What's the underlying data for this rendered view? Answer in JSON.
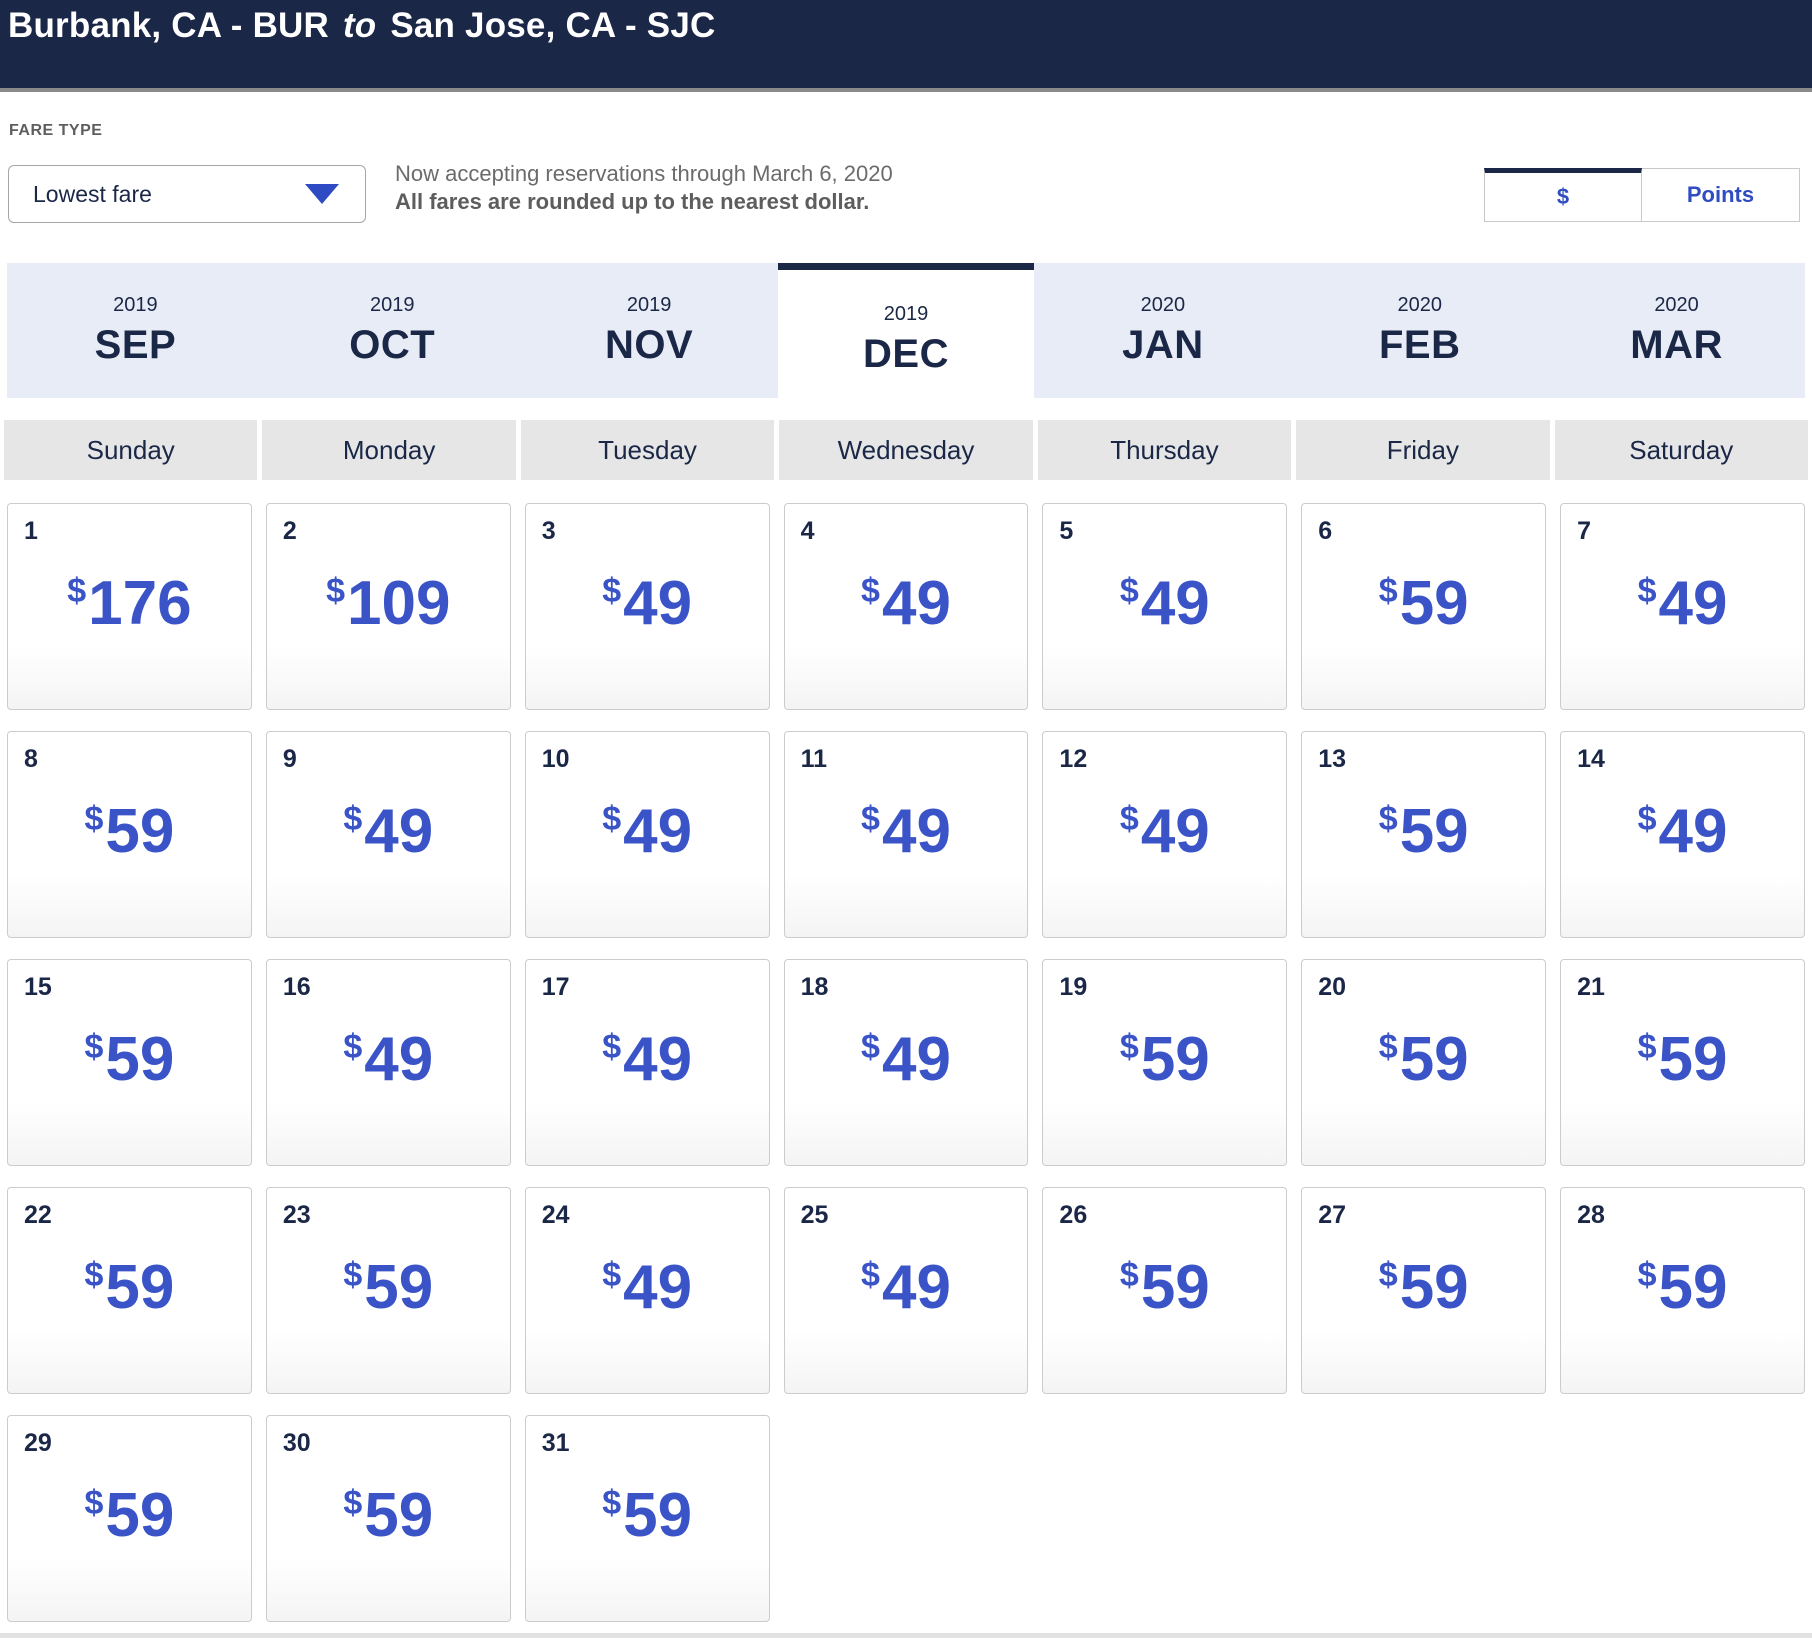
{
  "header": {
    "origin": "Burbank, CA - BUR",
    "to_word": "to",
    "destination": "San Jose, CA - SJC"
  },
  "fare_type": {
    "label": "FARE TYPE",
    "selected_option": "Lowest fare"
  },
  "notice": {
    "line1": "Now accepting reservations through March 6, 2020",
    "line2": "All fares are rounded up to the nearest dollar."
  },
  "currency_toggle": {
    "dollar_label": "$",
    "points_label": "Points",
    "selected": "dollar"
  },
  "month_tabs": [
    {
      "year": "2019",
      "label": "SEP"
    },
    {
      "year": "2019",
      "label": "OCT"
    },
    {
      "year": "2019",
      "label": "NOV"
    },
    {
      "year": "2019",
      "label": "DEC",
      "selected": true
    },
    {
      "year": "2020",
      "label": "JAN"
    },
    {
      "year": "2020",
      "label": "FEB"
    },
    {
      "year": "2020",
      "label": "MAR"
    }
  ],
  "weekdays": [
    "Sunday",
    "Monday",
    "Tuesday",
    "Wednesday",
    "Thursday",
    "Friday",
    "Saturday"
  ],
  "calendar": {
    "month": "DEC",
    "year": "2019",
    "currency_symbol": "$",
    "days": [
      {
        "day": 1,
        "price": "176"
      },
      {
        "day": 2,
        "price": "109"
      },
      {
        "day": 3,
        "price": "49"
      },
      {
        "day": 4,
        "price": "49"
      },
      {
        "day": 5,
        "price": "49"
      },
      {
        "day": 6,
        "price": "59"
      },
      {
        "day": 7,
        "price": "49"
      },
      {
        "day": 8,
        "price": "59"
      },
      {
        "day": 9,
        "price": "49"
      },
      {
        "day": 10,
        "price": "49"
      },
      {
        "day": 11,
        "price": "49"
      },
      {
        "day": 12,
        "price": "49"
      },
      {
        "day": 13,
        "price": "59"
      },
      {
        "day": 14,
        "price": "49"
      },
      {
        "day": 15,
        "price": "59"
      },
      {
        "day": 16,
        "price": "49"
      },
      {
        "day": 17,
        "price": "49"
      },
      {
        "day": 18,
        "price": "49"
      },
      {
        "day": 19,
        "price": "59"
      },
      {
        "day": 20,
        "price": "59"
      },
      {
        "day": 21,
        "price": "59"
      },
      {
        "day": 22,
        "price": "59"
      },
      {
        "day": 23,
        "price": "59"
      },
      {
        "day": 24,
        "price": "49"
      },
      {
        "day": 25,
        "price": "49"
      },
      {
        "day": 26,
        "price": "59"
      },
      {
        "day": 27,
        "price": "59"
      },
      {
        "day": 28,
        "price": "59"
      },
      {
        "day": 29,
        "price": "59"
      },
      {
        "day": 30,
        "price": "59"
      },
      {
        "day": 31,
        "price": "59"
      }
    ]
  },
  "colors": {
    "navy": "#1b2747",
    "accent_blue": "#3a54c8",
    "tab_background": "#e8ecf6",
    "weekday_background": "#e6e6e6"
  }
}
